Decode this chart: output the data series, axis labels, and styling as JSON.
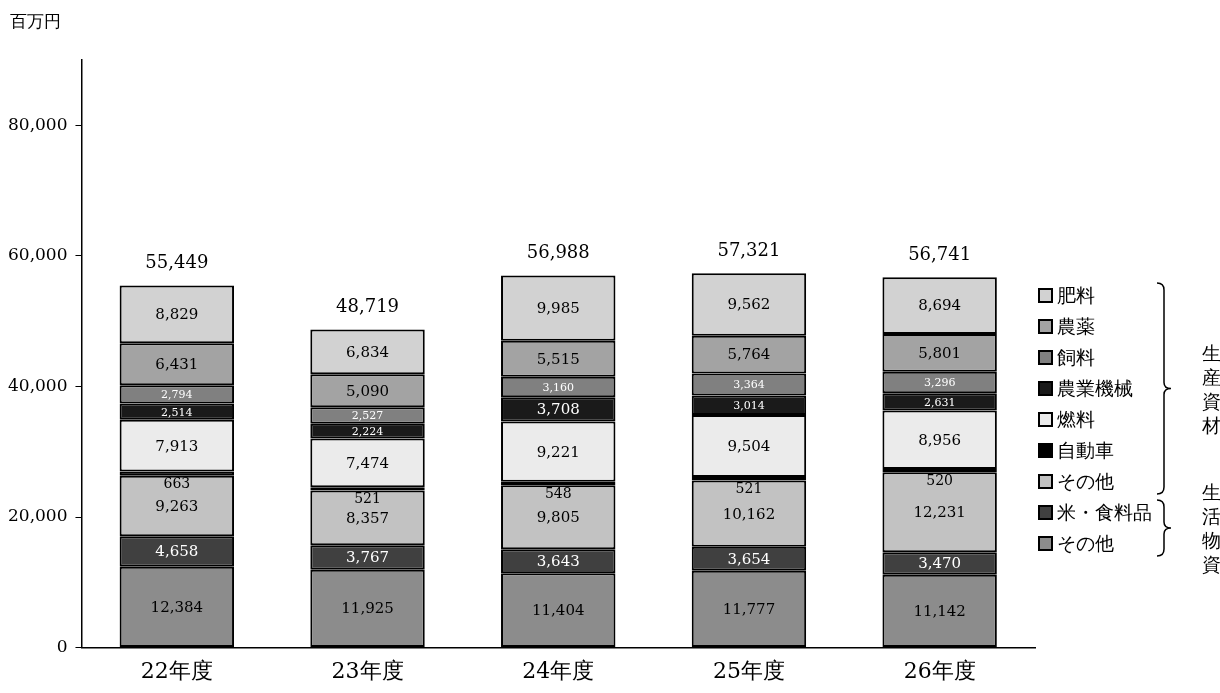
{
  "chart_data": {
    "type": "bar",
    "stacked": true,
    "ylabel": "百万円",
    "categories": [
      "22年度",
      "23年度",
      "24年度",
      "25年度",
      "26年度"
    ],
    "series": [
      {
        "name": "その他",
        "color": "#8c8c8c",
        "values": [
          12384,
          11925,
          11404,
          11777,
          11142
        ],
        "value_labels": [
          "12,384",
          "11,925",
          "11,404",
          "11,777",
          "11,142"
        ]
      },
      {
        "name": "米・食料品",
        "color": "#404040",
        "values": [
          4658,
          3767,
          3643,
          3654,
          3470
        ],
        "value_labels": [
          "4,658",
          "3,767",
          "3,643",
          "3,654",
          "3,470"
        ]
      },
      {
        "name": "その他",
        "color": "#c2c2c2",
        "values": [
          9263,
          8357,
          9805,
          10162,
          12231
        ],
        "value_labels": [
          "9,263",
          "8,357",
          "9,805",
          "10,162",
          "12,231"
        ]
      },
      {
        "name": "自動車",
        "color": "#000000",
        "values": [
          663,
          521,
          548,
          521,
          520
        ],
        "value_labels": [
          "663",
          "521",
          "548",
          "521",
          "520"
        ]
      },
      {
        "name": "燃料",
        "color": "#ebebeb",
        "values": [
          7913,
          7474,
          9221,
          9504,
          8956
        ],
        "value_labels": [
          "7,913",
          "7,474",
          "9,221",
          "9,504",
          "8,956"
        ]
      },
      {
        "name": "農業機械",
        "color": "#1a1a1a",
        "values": [
          2514,
          2224,
          3708,
          3014,
          2631
        ],
        "value_labels": [
          "2,514",
          "2,224",
          "3,708",
          "3,014",
          "2,631"
        ]
      },
      {
        "name": "飼料",
        "color": "#808080",
        "values": [
          2794,
          2527,
          3160,
          3364,
          3296
        ],
        "value_labels": [
          "2,794",
          "2,527",
          "3,160",
          "3,364",
          "3,296"
        ]
      },
      {
        "name": "農薬",
        "color": "#a3a3a3",
        "values": [
          6431,
          5090,
          5515,
          5764,
          5801
        ],
        "value_labels": [
          "6,431",
          "5,090",
          "5,515",
          "5,764",
          "5,801"
        ]
      },
      {
        "name": "肥料",
        "color": "#d2d2d2",
        "values": [
          8829,
          6834,
          9985,
          9562,
          8694
        ],
        "value_labels": [
          "8,829",
          "6,834",
          "9,985",
          "9,562",
          "8,694"
        ]
      }
    ],
    "totals": [
      "55,449",
      "48,719",
      "56,988",
      "57,321",
      "56,741"
    ],
    "ylim": [
      0,
      90000
    ],
    "yticks": [
      {
        "value": 0,
        "label": "0"
      },
      {
        "value": 20000,
        "label": "20,000"
      },
      {
        "value": 40000,
        "label": "40,000"
      },
      {
        "value": 60000,
        "label": "60,000"
      },
      {
        "value": 80000,
        "label": "80,000"
      }
    ],
    "legend": "right",
    "annotations": [
      "生産資材",
      "生活物資"
    ]
  }
}
